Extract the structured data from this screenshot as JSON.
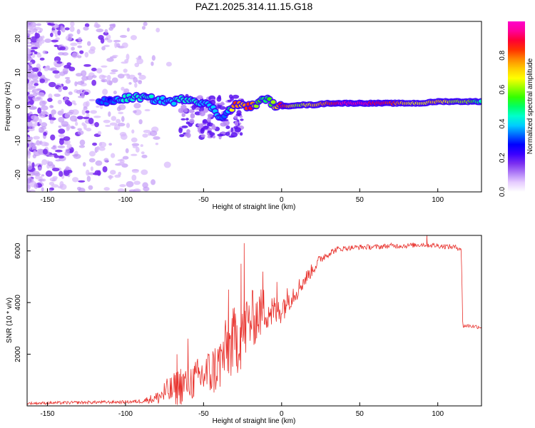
{
  "title": "PAZ1.2025.314.11.15.G18",
  "colors": {
    "snr_line": "#e8312c",
    "colormap": [
      "#ffffff",
      "#e6ccff",
      "#b07ef7",
      "#7b2ff0",
      "#3a00ff",
      "#0000ff",
      "#0066ff",
      "#00ccff",
      "#00ffcc",
      "#00ff66",
      "#33ff00",
      "#99ff00",
      "#ffff00",
      "#ffcc00",
      "#ff8800",
      "#ff3300",
      "#ff0033",
      "#ff0099",
      "#ff00cc"
    ]
  },
  "chart_data": [
    {
      "type": "heatmap",
      "name": "spectrogram",
      "xlabel": "Height of straight line (km)",
      "ylabel": "Frequency (Hz)",
      "xlim": [
        -163,
        128
      ],
      "ylim": [
        -25,
        25
      ],
      "xticks": [
        -150,
        -100,
        -50,
        0,
        50,
        100
      ],
      "yticks": [
        -20,
        -10,
        0,
        10,
        20
      ],
      "tick_labels_x": [
        "-150",
        "-100",
        "-50",
        "0",
        "50",
        "100"
      ],
      "tick_labels_y": [
        "-20",
        "-10",
        "0",
        "10",
        "20"
      ],
      "ridge": {
        "x": [
          -117,
          -110,
          -100,
          -90,
          -80,
          -70,
          -60,
          -50,
          -45,
          -40,
          -35,
          -30,
          -25,
          -20,
          -15,
          -10,
          -5,
          0,
          10,
          20,
          30,
          40,
          50,
          60,
          70,
          80,
          90,
          100,
          110,
          120,
          128
        ],
        "freq": [
          1.5,
          1.5,
          2.5,
          2.8,
          2.0,
          1.5,
          2.5,
          1.0,
          0,
          -3,
          -2,
          0.5,
          0.5,
          0,
          1.0,
          2.5,
          0.5,
          0,
          0.5,
          0.5,
          1.0,
          1.0,
          1.0,
          1.0,
          1.0,
          1.0,
          1.0,
          1.5,
          1.5,
          1.5,
          1.5
        ],
        "amplitude": [
          0.35,
          0.3,
          0.45,
          0.45,
          0.4,
          0.4,
          0.45,
          0.4,
          0.4,
          0.4,
          0.3,
          0.85,
          0.7,
          0.9,
          0.55,
          0.5,
          0.6,
          0.9,
          0.6,
          0.7,
          0.8,
          0.95,
          0.95,
          0.9,
          0.85,
          0.7,
          0.65,
          0.75,
          0.6,
          0.6,
          0.45
        ]
      },
      "colorbar": {
        "label": "Normalized spectral amplitude",
        "range": [
          0,
          1
        ],
        "ticks": [
          0.0,
          0.2,
          0.4,
          0.6,
          0.8
        ],
        "tick_labels": [
          "0.0",
          "0.2",
          "0.4",
          "0.6",
          "0.8"
        ]
      }
    },
    {
      "type": "line",
      "name": "snr",
      "xlabel": "Height of straight line (km)",
      "ylabel": "SNR (10 * v/v)",
      "xlim": [
        -163,
        128
      ],
      "ylim": [
        0,
        6600
      ],
      "xticks": [
        -150,
        -100,
        -50,
        0,
        50,
        100
      ],
      "yticks": [
        2000,
        4000,
        6000
      ],
      "tick_labels_x": [
        "-150",
        "-100",
        "-50",
        "0",
        "50",
        "100"
      ],
      "tick_labels_y": [
        "2000",
        "4000",
        "6000"
      ],
      "series": [
        {
          "name": "SNR",
          "x": [
            -163,
            -140,
            -120,
            -100,
            -90,
            -85,
            -80,
            -75,
            -70,
            -65,
            -60,
            -55,
            -50,
            -45,
            -40,
            -35,
            -30,
            -25,
            -20,
            -15,
            -10,
            -5,
            0,
            5,
            10,
            15,
            20,
            25,
            30,
            35,
            40,
            50,
            60,
            70,
            80,
            90,
            100,
            110,
            115,
            116,
            120,
            128
          ],
          "y": [
            100,
            120,
            140,
            150,
            180,
            250,
            300,
            500,
            600,
            800,
            900,
            1000,
            1200,
            1300,
            1600,
            2200,
            2500,
            2900,
            3300,
            3500,
            3800,
            3600,
            3800,
            4200,
            4500,
            4900,
            5300,
            5700,
            5900,
            6050,
            6100,
            6150,
            6150,
            6200,
            6200,
            6250,
            6200,
            6150,
            6100,
            3100,
            3100,
            3050
          ],
          "noise": [
            50,
            60,
            60,
            60,
            80,
            150,
            250,
            500,
            600,
            800,
            700,
            800,
            900,
            1000,
            1100,
            1300,
            1400,
            1500,
            1200,
            1000,
            900,
            700,
            600,
            500,
            400,
            300,
            250,
            200,
            150,
            120,
            100,
            100,
            100,
            100,
            100,
            100,
            100,
            100,
            100,
            80,
            80,
            80
          ],
          "spike_peaks": [
            [
              -24,
              6300
            ],
            [
              -26,
              5500
            ],
            [
              -34,
              4500
            ],
            [
              -12,
              5200
            ],
            [
              -60,
              2600
            ],
            [
              -67,
              2000
            ],
            [
              -3,
              4800
            ],
            [
              93,
              6600
            ]
          ]
        }
      ]
    }
  ]
}
